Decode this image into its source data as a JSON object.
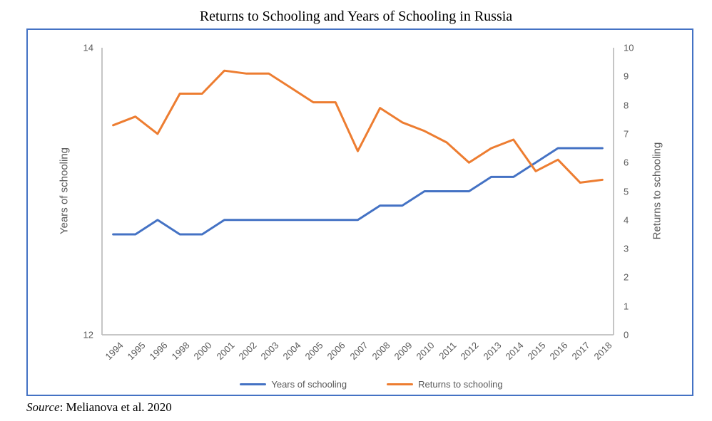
{
  "title": "Returns to Schooling and Years of Schooling in Russia",
  "source": {
    "word": "Source",
    "rest": ": Melianova et al. 2020"
  },
  "colors": {
    "border": "#4472C4",
    "axis_line": "#BFBFBF",
    "tick_text": "#595959",
    "series_blue": "#4472C4",
    "series_orange": "#ED7D31"
  },
  "chart_data": {
    "type": "line",
    "title": "Returns to Schooling and Years of Schooling in Russia",
    "categories": [
      "1994",
      "1995",
      "1996",
      "1998",
      "2000",
      "2001",
      "2002",
      "2003",
      "2004",
      "2005",
      "2006",
      "2007",
      "2008",
      "2009",
      "2010",
      "2011",
      "2012",
      "2013",
      "2014",
      "2015",
      "2016",
      "2017",
      "2018"
    ],
    "series": [
      {
        "name": "Years of schooling",
        "axis": "left",
        "color": "#4472C4",
        "values": [
          12.7,
          12.7,
          12.8,
          12.7,
          12.7,
          12.8,
          12.8,
          12.8,
          12.8,
          12.8,
          12.8,
          12.8,
          12.9,
          12.9,
          13.0,
          13.0,
          13.0,
          13.1,
          13.1,
          13.2,
          13.3,
          13.3,
          13.3
        ]
      },
      {
        "name": "Returns to schooling",
        "axis": "right",
        "color": "#ED7D31",
        "values": [
          7.3,
          7.6,
          7.0,
          8.4,
          8.4,
          9.2,
          9.1,
          9.1,
          8.6,
          8.1,
          8.1,
          6.4,
          7.9,
          7.4,
          7.1,
          6.7,
          6.0,
          6.5,
          6.8,
          5.7,
          6.1,
          5.3,
          5.4
        ]
      }
    ],
    "left_axis": {
      "label": "Years of schooling",
      "min": 12,
      "max": 14,
      "ticks": [
        12,
        14
      ]
    },
    "right_axis": {
      "label": "Returns to schooling",
      "min": 0,
      "max": 10,
      "ticks": [
        0,
        1,
        2,
        3,
        4,
        5,
        6,
        7,
        8,
        9,
        10
      ]
    },
    "grid": false,
    "legend_position": "bottom",
    "x_tick_rotation_deg": 45
  }
}
